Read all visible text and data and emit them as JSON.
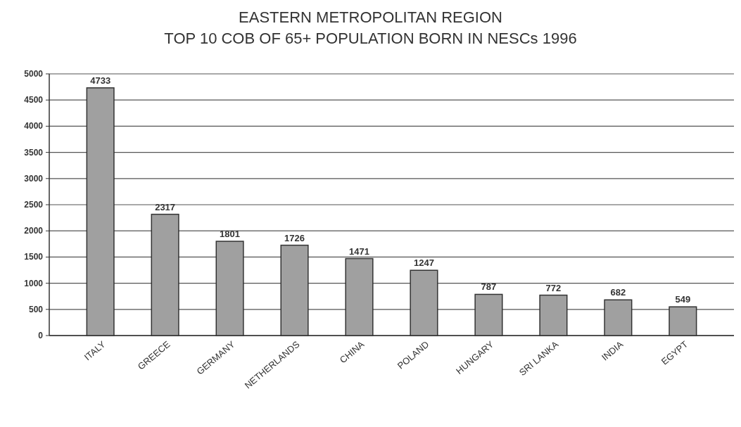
{
  "chart_data": {
    "type": "bar",
    "title": "EASTERN METROPOLITAN REGION\nTOP 10 COB OF 65+ POPULATION BORN IN NESCs 1996",
    "categories": [
      "ITALY",
      "GREECE",
      "GERMANY",
      "NETHERLANDS",
      "CHINA",
      "POLAND",
      "HUNGARY",
      "SRI LANKA",
      "INDIA",
      "EGYPT"
    ],
    "values": [
      4733,
      2317,
      1801,
      1726,
      1471,
      1247,
      787,
      772,
      682,
      549
    ],
    "color": "#a0a0a0",
    "ylim": [
      0,
      5000
    ],
    "yticks": [
      0,
      500,
      1000,
      1500,
      2000,
      2500,
      3000,
      3500,
      4000,
      4500,
      5000
    ],
    "grid": "y",
    "data_labels": true
  }
}
